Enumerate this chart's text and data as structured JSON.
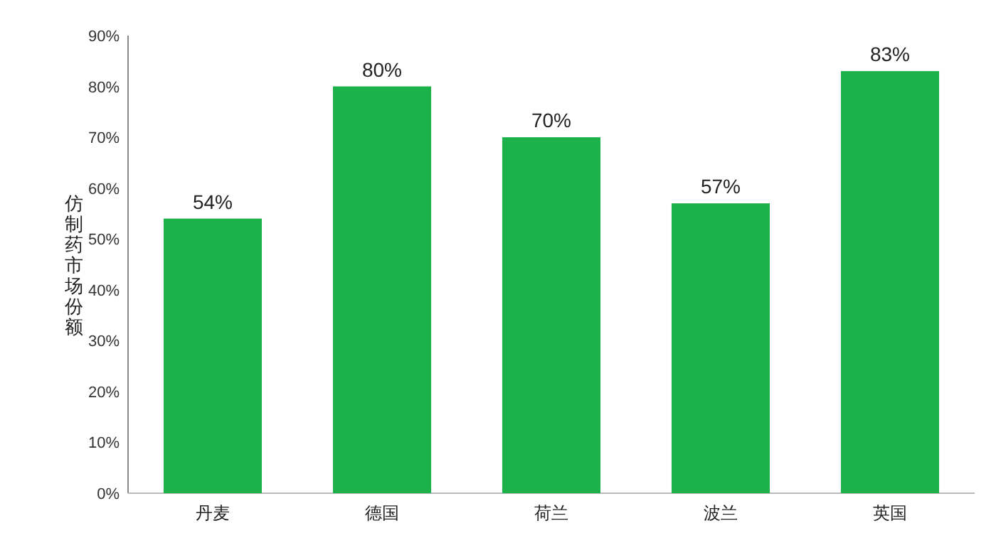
{
  "chart_data": {
    "type": "bar",
    "ylabel": "仿制药市场份额",
    "categories": [
      "丹麦",
      "德国",
      "荷兰",
      "波兰",
      "英国"
    ],
    "values": [
      54,
      80,
      70,
      57,
      83
    ],
    "value_labels": [
      "54%",
      "80%",
      "70%",
      "57%",
      "83%"
    ],
    "color": "#1db14b",
    "ylim": [
      0,
      90
    ],
    "yticks": [
      {
        "value": 0,
        "label": "0%"
      },
      {
        "value": 10,
        "label": "10%"
      },
      {
        "value": 20,
        "label": "20%"
      },
      {
        "value": 30,
        "label": "30%"
      },
      {
        "value": 40,
        "label": "40%"
      },
      {
        "value": 50,
        "label": "50%"
      },
      {
        "value": 60,
        "label": "60%"
      },
      {
        "value": 70,
        "label": "70%"
      },
      {
        "value": 80,
        "label": "80%"
      },
      {
        "value": 90,
        "label": "90%"
      }
    ]
  }
}
